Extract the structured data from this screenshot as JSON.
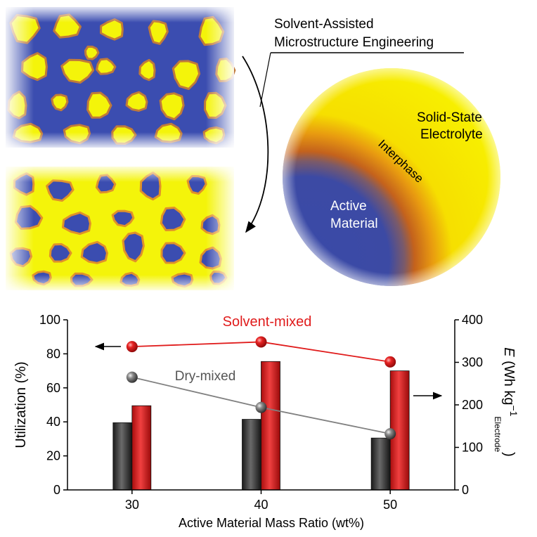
{
  "illustration": {
    "process_label_line1": "Solvent-Assisted",
    "process_label_line2": "Microstructure Engineering",
    "electrolyte_label_line1": "Solid-State",
    "electrolyte_label_line2": "Electrolyte",
    "interphase_label": "Interphase",
    "active_label_line1": "Active",
    "active_label_line2": "Material",
    "colors": {
      "active_material": "#3a4aa8",
      "electrolyte": "#f7f700",
      "interphase": "#c8661a"
    }
  },
  "chart_data": {
    "type": "bar",
    "xlabel": "Active Material Mass Ratio (wt%)",
    "categories": [
      "30",
      "40",
      "50"
    ],
    "left_axis": {
      "label": "Utilization (%)",
      "ylim": [
        0,
        100
      ],
      "ticks": [
        0,
        20,
        40,
        60,
        80,
        100
      ]
    },
    "right_axis": {
      "label_symbol": "E",
      "label_rest": " (Wh kg",
      "label_superscript": "−1",
      "label_subscript": "Electrode",
      "label_close": ")",
      "ylim": [
        0,
        400
      ],
      "ticks": [
        0,
        100,
        200,
        300,
        400
      ]
    },
    "series": [
      {
        "name": "Dry-mixed",
        "kind": "bar",
        "axis": "left",
        "color": "#333333",
        "values": [
          39.5,
          41.5,
          30.5
        ]
      },
      {
        "name": "Solvent-mixed",
        "kind": "bar",
        "axis": "left",
        "color": "#d42020",
        "values": [
          49.5,
          75.5,
          70
        ]
      },
      {
        "name": "Dry-mixed",
        "kind": "line",
        "axis": "right",
        "color": "#808080",
        "values": [
          265,
          194,
          132
        ]
      },
      {
        "name": "Solvent-mixed",
        "kind": "line",
        "axis": "right",
        "color": "#e01b1b",
        "values": [
          337,
          348,
          301
        ]
      }
    ],
    "annotations": {
      "solvent_label": "Solvent-mixed",
      "dry_label": "Dry-mixed"
    },
    "grid": false
  }
}
